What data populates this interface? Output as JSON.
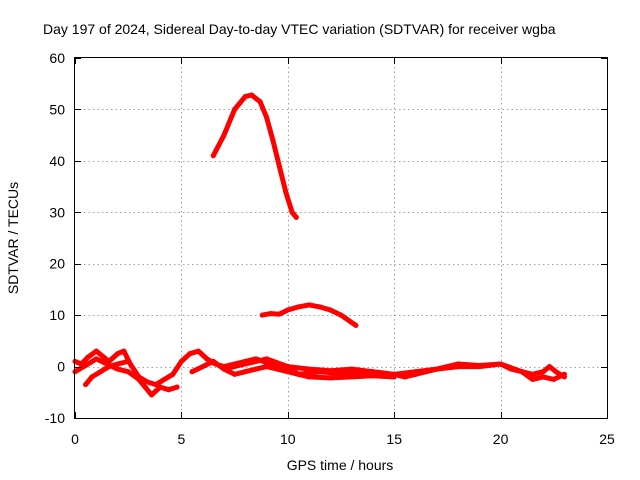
{
  "chart_data": {
    "type": "line",
    "title": "Day 197 of 2024, Sidereal Day-to-day VTEC variation (SDTVAR) for receiver wgba",
    "xlabel": "GPS time / hours",
    "ylabel": "SDTVAR / TECUs",
    "xlim": [
      0,
      25
    ],
    "ylim": [
      -10,
      60
    ],
    "xticks": [
      0,
      5,
      10,
      15,
      20,
      25
    ],
    "yticks": [
      -10,
      0,
      10,
      20,
      30,
      40,
      50,
      60
    ],
    "xtick_labels": [
      "0",
      "5",
      "10",
      "15",
      "20",
      "25"
    ],
    "ytick_labels": [
      "-10",
      "0",
      "10",
      "20",
      "30",
      "40",
      "50",
      "60"
    ],
    "grid": true,
    "legend": "none",
    "color": "#ff0000",
    "series": [
      {
        "name": "arc-high",
        "x": [
          6.5,
          7.0,
          7.5,
          8.0,
          8.3,
          8.7,
          9.0,
          9.3,
          9.6,
          9.9,
          10.2,
          10.4
        ],
        "y": [
          41,
          45,
          50,
          52.5,
          52.8,
          51.5,
          48.5,
          44,
          39,
          34,
          30,
          29
        ]
      },
      {
        "name": "arc-mid",
        "x": [
          8.8,
          9.2,
          9.6,
          10.0,
          10.5,
          11.0,
          11.5,
          12.0,
          12.5,
          13.2
        ],
        "y": [
          10,
          10.3,
          10.2,
          11,
          11.6,
          12,
          11.6,
          11,
          10,
          8
        ]
      },
      {
        "name": "band-1",
        "x": [
          0.0,
          0.3,
          0.6,
          1.0,
          1.3,
          1.6,
          2.0,
          2.3,
          2.6,
          3.0,
          3.4,
          3.8,
          4.2,
          4.6,
          5.0,
          5.4,
          5.8,
          6.2,
          6.6,
          7.0,
          7.5,
          8.0,
          8.5,
          9.0,
          9.5,
          10.0
        ],
        "y": [
          1,
          0.5,
          1.8,
          3,
          2,
          1,
          2.5,
          3,
          0.5,
          -2,
          -3,
          -3.5,
          -2.5,
          -1.5,
          1,
          2.5,
          3,
          1.5,
          0.5,
          0,
          0.5,
          1,
          1.5,
          0.8,
          0.3,
          0
        ]
      },
      {
        "name": "band-2",
        "x": [
          0.0,
          0.5,
          1.0,
          1.5,
          2.0,
          2.5,
          3.0,
          3.3,
          3.6,
          4.0,
          4.4,
          4.8
        ],
        "y": [
          -1,
          0.2,
          1.5,
          0.5,
          -0.5,
          -1,
          -2.5,
          -4,
          -5.5,
          -4,
          -4.5,
          -4
        ]
      },
      {
        "name": "band-3",
        "x": [
          0.5,
          0.8,
          1.2,
          1.6,
          2.0,
          2.5
        ],
        "y": [
          -3.5,
          -2,
          -1,
          0,
          0.5,
          1
        ]
      },
      {
        "name": "band-4",
        "x": [
          5.5,
          6.0,
          6.5,
          7.0,
          7.5,
          8.0,
          8.5,
          9.0,
          9.5,
          10.0,
          10.5,
          11.0,
          11.5,
          12.0,
          12.5,
          13.0,
          13.5,
          14.0,
          14.5,
          15.0,
          15.5,
          16.0
        ],
        "y": [
          -1,
          0,
          1,
          -0.5,
          -1.5,
          -1,
          -0.5,
          0,
          -0.5,
          -1,
          -1.5,
          -1.3,
          -1,
          -1.2,
          -1.5,
          -1,
          -1.5,
          -1,
          -1.8,
          -1.5,
          -2,
          -1.5
        ]
      },
      {
        "name": "band-5",
        "x": [
          9.0,
          10.0,
          11.0,
          12.0,
          13.0,
          14.0,
          15.0,
          16.0,
          17.0,
          18.0,
          19.0,
          20.0,
          20.5,
          21.0,
          21.5,
          22.0,
          22.3,
          22.6,
          23.0
        ],
        "y": [
          1,
          0,
          -0.5,
          -0.8,
          -0.5,
          -1,
          -1.5,
          -1,
          -0.5,
          0,
          0,
          0.5,
          -0.5,
          -1,
          -1.5,
          -1,
          0,
          -1,
          -2
        ]
      },
      {
        "name": "band-6",
        "x": [
          16.0,
          17.0,
          18.0,
          19.0,
          20.0,
          21.0,
          21.5,
          22.0,
          22.5,
          23.0
        ],
        "y": [
          -1.5,
          -0.5,
          0.5,
          0.2,
          0.5,
          -1,
          -2.5,
          -2,
          -2.5,
          -1.5
        ]
      },
      {
        "name": "band-7",
        "x": [
          7.0,
          8.0,
          9.0,
          10.0,
          10.5,
          11.0,
          12.0,
          13.0,
          14.0,
          15.0
        ],
        "y": [
          -0.5,
          0.5,
          1.5,
          0,
          -1.5,
          -2,
          -2.2,
          -2,
          -1.8,
          -2
        ]
      }
    ]
  }
}
